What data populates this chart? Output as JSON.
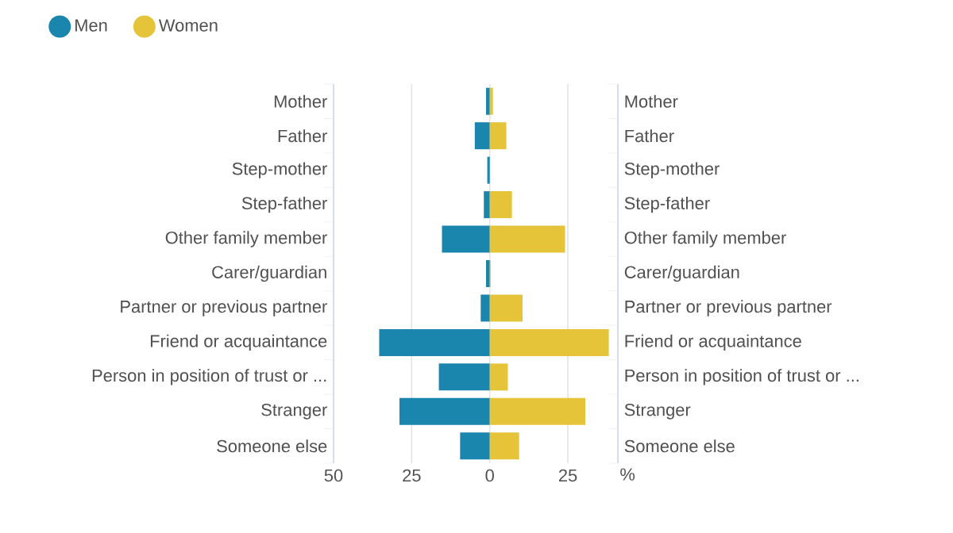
{
  "chart_data": {
    "type": "bar",
    "orientation": "horizontal",
    "stacked": true,
    "legend": "top left",
    "grid": "x",
    "xlabel": "%",
    "categories": [
      "Mother",
      "Father",
      "Step-mother",
      "Step-father",
      "Other family member",
      "Carer/guardian",
      "Partner or previous partner",
      "Friend or acquaintance",
      "Person in position of trust or ...",
      "Stranger",
      "Someone else"
    ],
    "series": [
      {
        "name": "Men",
        "color": "#1a86ad",
        "values": [
          -1.2,
          -4.8,
          -0.8,
          -1.9,
          -15.3,
          -1.2,
          -2.9,
          -35.4,
          -16.3,
          -28.9,
          -9.5
        ]
      },
      {
        "name": "Women",
        "color": "#e6c43a",
        "values": [
          1.0,
          5.3,
          0,
          7.1,
          24.1,
          0.3,
          10.5,
          38.1,
          5.8,
          30.6,
          9.4
        ]
      }
    ],
    "xlim": [
      -50,
      41
    ],
    "xticks": [
      {
        "value": -50,
        "label": "50"
      },
      {
        "value": -25,
        "label": "25"
      },
      0,
      25
    ]
  }
}
